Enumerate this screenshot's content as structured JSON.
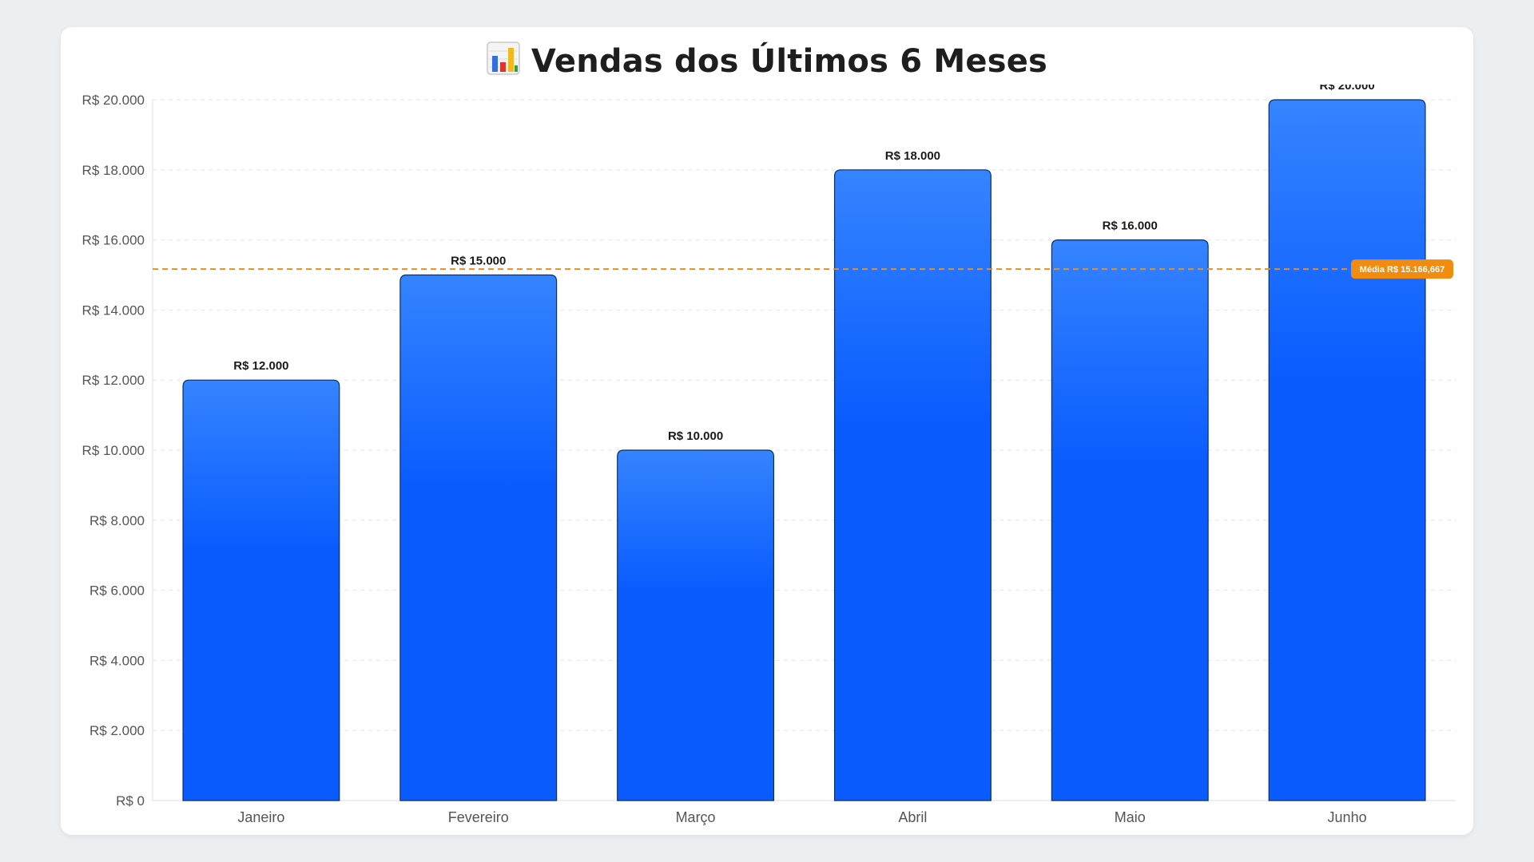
{
  "chart_data": {
    "type": "bar",
    "title": "Vendas dos Últimos 6 Meses",
    "title_icon": "bar-chart-icon",
    "categories": [
      "Janeiro",
      "Fevereiro",
      "Março",
      "Abril",
      "Maio",
      "Junho"
    ],
    "values": [
      12000,
      15000,
      10000,
      18000,
      16000,
      20000
    ],
    "data_labels": [
      "R$ 12.000",
      "R$ 15.000",
      "R$ 10.000",
      "R$ 18.000",
      "R$ 16.000",
      "R$ 20.000"
    ],
    "ylim": [
      0,
      20000
    ],
    "yticks": [
      0,
      2000,
      4000,
      6000,
      8000,
      10000,
      12000,
      14000,
      16000,
      18000,
      20000
    ],
    "ytick_labels": [
      "R$ 0",
      "R$ 2.000",
      "R$ 4.000",
      "R$ 6.000",
      "R$ 8.000",
      "R$ 10.000",
      "R$ 12.000",
      "R$ 14.000",
      "R$ 16.000",
      "R$ 18.000",
      "R$ 20.000"
    ],
    "xlabel": "",
    "ylabel": "",
    "grid": true,
    "average": {
      "value": 15166.667,
      "label": "Média R$ 15.166,667",
      "color": "#f28c0f"
    },
    "colors": {
      "bar_top": "#3584ff",
      "bar_bottom": "#0a5cff",
      "bar_stroke": "#0b2f66",
      "grid": "#e6e6e6"
    }
  }
}
